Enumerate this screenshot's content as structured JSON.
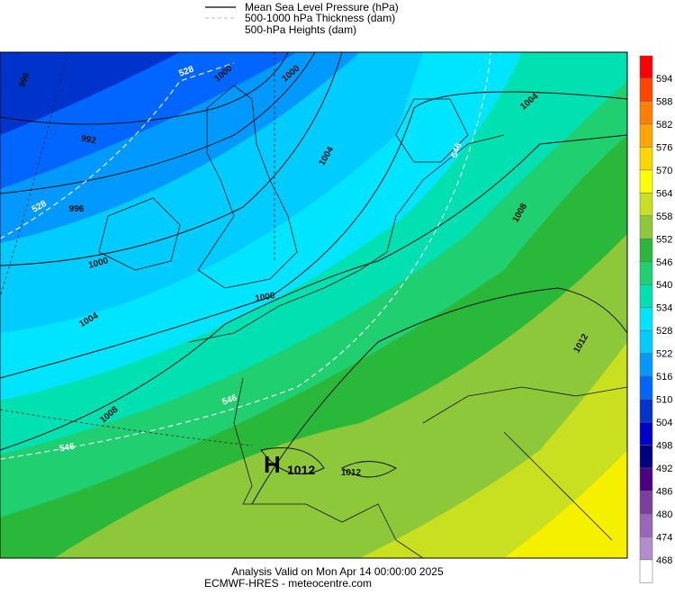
{
  "legend": {
    "items": [
      "Mean Sea Level Pressure (hPa)",
      "500-1000 hPa Thickness (dam)",
      "500-hPa Heights (dam)"
    ]
  },
  "colorbar": {
    "labels": [
      "594",
      "588",
      "582",
      "576",
      "570",
      "564",
      "558",
      "552",
      "546",
      "540",
      "534",
      "528",
      "522",
      "516",
      "510",
      "504",
      "498",
      "492",
      "486",
      "480",
      "474",
      "468"
    ]
  },
  "map": {
    "contour_labels": [
      "996",
      "528",
      "1000",
      "1000",
      "992",
      "996",
      "528",
      "1000",
      "1004",
      "1000",
      "1004",
      "1008",
      "546",
      "546",
      "1012",
      "1004",
      "1008",
      "546",
      "1012"
    ],
    "high": {
      "symbol": "H",
      "value": "1012"
    }
  },
  "footer": {
    "line1": "Analysis Valid on Mon Apr 14 00:00:00 2025",
    "line2": "ECMWF-HRES - meteocentre.com"
  }
}
